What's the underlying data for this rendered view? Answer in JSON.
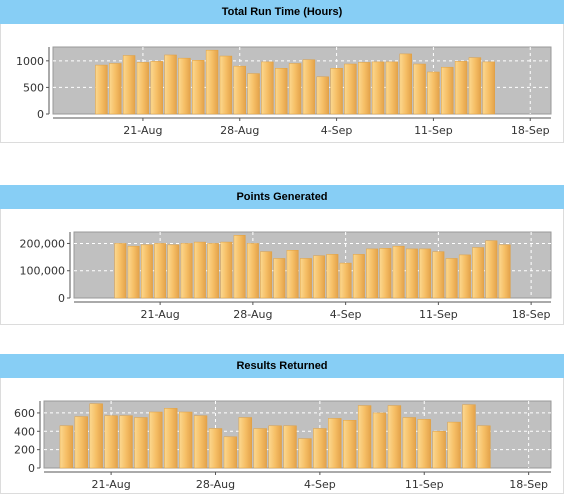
{
  "panels": [
    {
      "title": "Total Run Time (Hours)"
    },
    {
      "title": "Points Generated"
    },
    {
      "title": "Results Returned"
    }
  ],
  "colors": {
    "header": "#87cef5",
    "plot_bg": "#c0c0c0",
    "bar": "#f4b860",
    "bar_edge": "#e0a040"
  },
  "chart_data": [
    {
      "type": "bar",
      "title": "Total Run Time (Hours)",
      "x_ticks": [
        "21-Aug",
        "28-Aug",
        "4-Sep",
        "11-Sep",
        "18-Sep"
      ],
      "x_tick_positions": [
        3,
        10,
        17,
        24,
        31
      ],
      "y_ticks": [
        "0",
        "500",
        "1000"
      ],
      "y_tick_values": [
        0,
        500,
        1000
      ],
      "ylim": [
        0,
        1260
      ],
      "xlim": [
        -3.5,
        32.5
      ],
      "grid": true,
      "values": [
        920,
        950,
        1100,
        970,
        990,
        1110,
        1050,
        1010,
        1200,
        1090,
        900,
        760,
        980,
        860,
        950,
        1020,
        700,
        860,
        940,
        970,
        980,
        980,
        1130,
        940,
        790,
        880,
        990,
        1060,
        980
      ]
    },
    {
      "type": "bar",
      "title": "Points Generated",
      "x_ticks": [
        "21-Aug",
        "28-Aug",
        "4-Sep",
        "11-Sep",
        "18-Sep"
      ],
      "x_tick_positions": [
        3,
        10,
        17,
        24,
        31
      ],
      "y_ticks": [
        "0",
        "100,000",
        "200,000"
      ],
      "y_tick_values": [
        0,
        100000,
        200000
      ],
      "ylim": [
        0,
        242000
      ],
      "xlim": [
        -3.5,
        32.5
      ],
      "grid": true,
      "values": [
        200000,
        190000,
        195000,
        200000,
        195000,
        200000,
        205000,
        200000,
        205000,
        230000,
        200000,
        170000,
        145000,
        175000,
        145000,
        155000,
        160000,
        128000,
        160000,
        180000,
        182000,
        190000,
        180000,
        180000,
        170000,
        145000,
        158000,
        185000,
        210000,
        195000
      ]
    },
    {
      "type": "bar",
      "title": "Results Returned",
      "x_ticks": [
        "21-Aug",
        "28-Aug",
        "4-Sep",
        "11-Sep",
        "18-Sep"
      ],
      "x_tick_positions": [
        3,
        10,
        17,
        24,
        31
      ],
      "y_ticks": [
        "0",
        "200",
        "400",
        "600"
      ],
      "y_tick_values": [
        0,
        200,
        400,
        600
      ],
      "ylim": [
        0,
        730
      ],
      "xlim": [
        -1.5,
        32.5
      ],
      "grid": true,
      "values": [
        460,
        560,
        700,
        570,
        570,
        550,
        610,
        650,
        610,
        570,
        430,
        340,
        550,
        430,
        460,
        460,
        320,
        430,
        540,
        520,
        680,
        600,
        680,
        550,
        530,
        400,
        500,
        690,
        460
      ]
    }
  ]
}
